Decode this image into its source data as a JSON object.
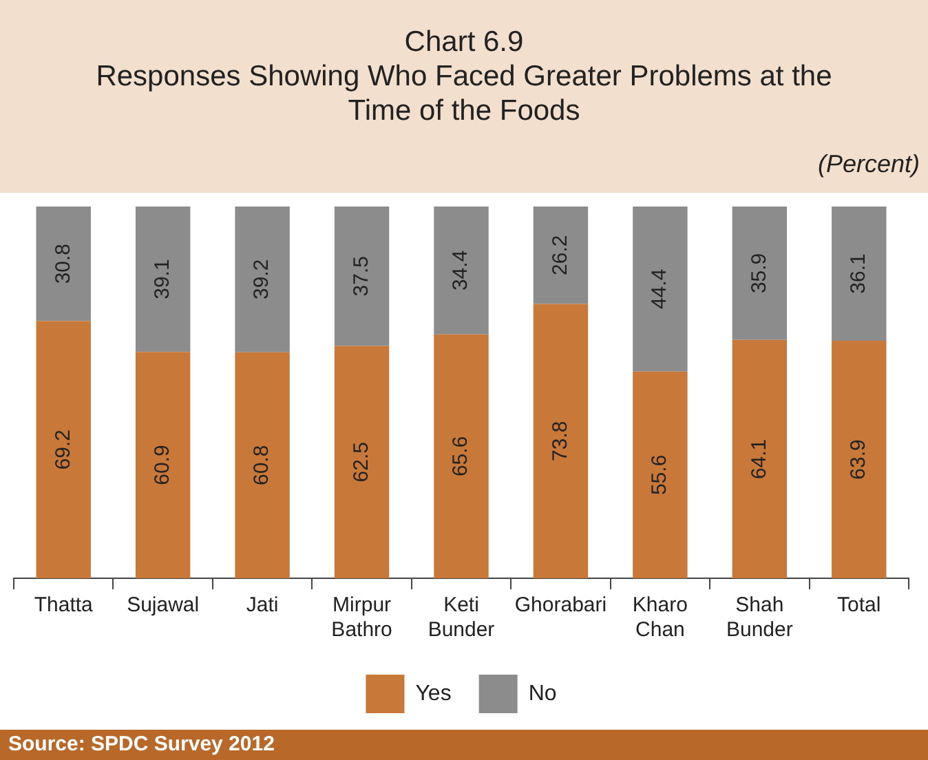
{
  "chart_data": {
    "type": "bar",
    "title": "Chart 6.9",
    "subtitle": "Responses Showing Who Faced Greater Problems at the Time of the Foods",
    "annotations": [
      "(Percent)",
      "Source: SPDC Survey 2012"
    ],
    "categories": [
      "Thatta",
      "Sujawal",
      "Jati",
      "Mirpur Bathro",
      "Keti Bunder",
      "Ghorabari",
      "Kharo Chan",
      "Shah Bunder",
      "Total"
    ],
    "series": [
      {
        "name": "Yes",
        "color": "#c8793a",
        "values": [
          69.2,
          60.9,
          60.8,
          62.5,
          65.6,
          73.8,
          55.6,
          64.1,
          63.9
        ]
      },
      {
        "name": "No",
        "color": "#8c8c8c",
        "values": [
          30.8,
          39.1,
          39.2,
          37.5,
          34.4,
          26.2,
          44.4,
          35.9,
          36.1
        ]
      }
    ],
    "stacked": true,
    "ylim": [
      0,
      100
    ],
    "tick_labels": "x",
    "data_labels": true,
    "grid": false,
    "legend": "bottom"
  }
}
